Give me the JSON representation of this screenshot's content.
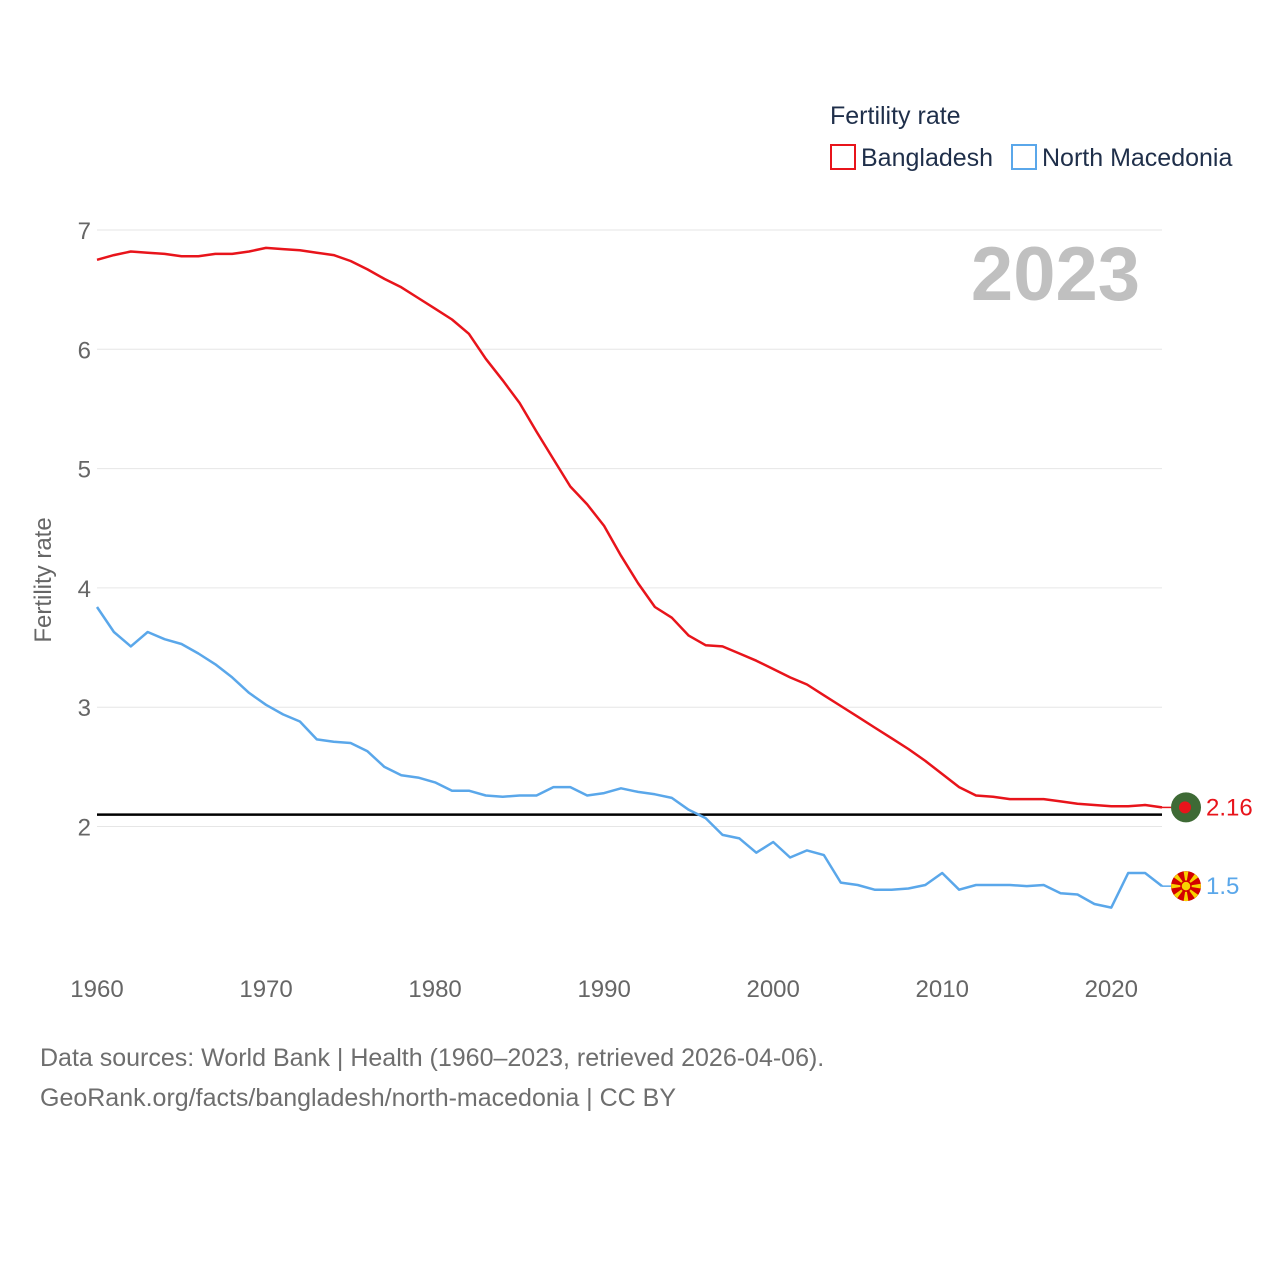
{
  "chart_data": {
    "type": "line",
    "title": "Fertility rate",
    "ylabel": "Fertility rate",
    "xlabel": "",
    "year_label": "2023",
    "xlim": [
      1960,
      2023
    ],
    "ylim": [
      1,
      7
    ],
    "x_ticks": [
      1960,
      1970,
      1980,
      1990,
      2000,
      2010,
      2020
    ],
    "y_ticks": [
      2,
      3,
      4,
      5,
      6,
      7
    ],
    "reference_line": {
      "value": 2.1
    },
    "x": [
      1960,
      1961,
      1962,
      1963,
      1964,
      1965,
      1966,
      1967,
      1968,
      1969,
      1970,
      1971,
      1972,
      1973,
      1974,
      1975,
      1976,
      1977,
      1978,
      1979,
      1980,
      1981,
      1982,
      1983,
      1984,
      1985,
      1986,
      1987,
      1988,
      1989,
      1990,
      1991,
      1992,
      1993,
      1994,
      1995,
      1996,
      1997,
      1998,
      1999,
      2000,
      2001,
      2002,
      2003,
      2004,
      2005,
      2006,
      2007,
      2008,
      2009,
      2010,
      2011,
      2012,
      2013,
      2014,
      2015,
      2016,
      2017,
      2018,
      2019,
      2020,
      2021,
      2022,
      2023
    ],
    "series": [
      {
        "name": "Bangladesh",
        "color": "#e8141b",
        "end_label": "2.16",
        "flag": "bangladesh-flag",
        "values": [
          6.75,
          6.79,
          6.82,
          6.81,
          6.8,
          6.78,
          6.78,
          6.8,
          6.8,
          6.82,
          6.85,
          6.84,
          6.83,
          6.81,
          6.79,
          6.74,
          6.67,
          6.59,
          6.52,
          6.43,
          6.34,
          6.25,
          6.13,
          5.92,
          5.74,
          5.55,
          5.31,
          5.08,
          4.85,
          4.7,
          4.52,
          4.27,
          4.04,
          3.84,
          3.75,
          3.6,
          3.52,
          3.51,
          3.45,
          3.39,
          3.32,
          3.25,
          3.19,
          3.1,
          3.01,
          2.92,
          2.83,
          2.74,
          2.65,
          2.55,
          2.44,
          2.33,
          2.26,
          2.25,
          2.23,
          2.23,
          2.23,
          2.21,
          2.19,
          2.18,
          2.17,
          2.17,
          2.18,
          2.16
        ]
      },
      {
        "name": "North Macedonia",
        "color": "#5aa7ea",
        "end_label": "1.5",
        "flag": "north-macedonia-flag",
        "values": [
          3.84,
          3.63,
          3.51,
          3.63,
          3.57,
          3.53,
          3.45,
          3.36,
          3.25,
          3.12,
          3.02,
          2.94,
          2.88,
          2.73,
          2.71,
          2.7,
          2.63,
          2.5,
          2.43,
          2.41,
          2.37,
          2.3,
          2.3,
          2.26,
          2.25,
          2.26,
          2.26,
          2.33,
          2.33,
          2.26,
          2.28,
          2.32,
          2.29,
          2.27,
          2.24,
          2.14,
          2.07,
          1.93,
          1.9,
          1.78,
          1.87,
          1.74,
          1.8,
          1.76,
          1.53,
          1.51,
          1.47,
          1.47,
          1.48,
          1.51,
          1.61,
          1.47,
          1.51,
          1.51,
          1.51,
          1.5,
          1.51,
          1.44,
          1.43,
          1.35,
          1.32,
          1.61,
          1.61,
          1.5
        ]
      }
    ]
  },
  "sources": {
    "line1": "Data sources: World Bank | Health (1960–2023, retrieved 2026-04-06).",
    "line2": "GeoRank.org/facts/bangladesh/north-macedonia | CC BY"
  }
}
